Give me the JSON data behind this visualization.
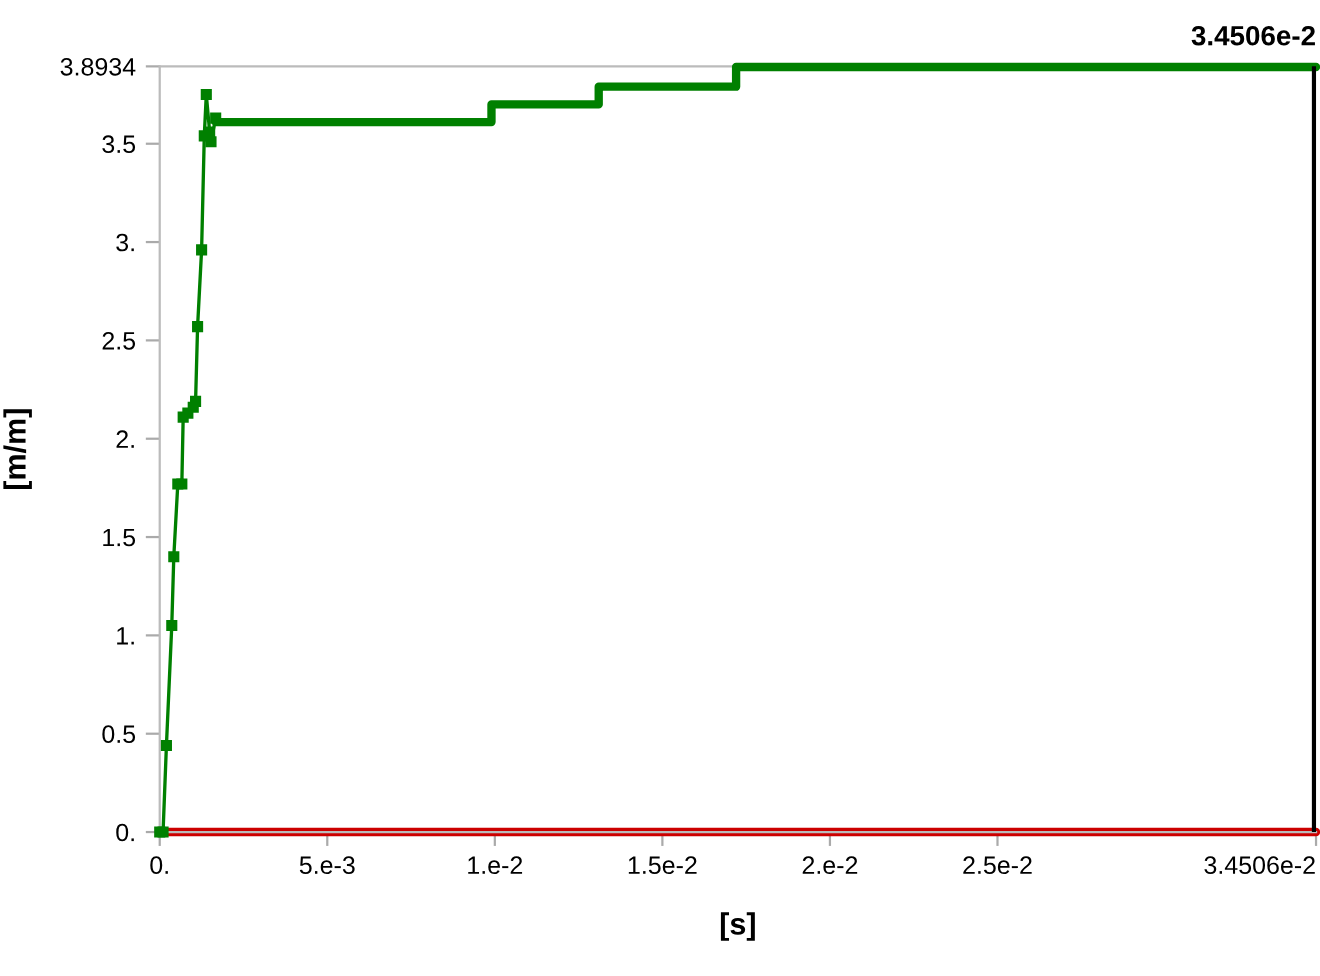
{
  "chart_data": {
    "type": "line",
    "xlabel": "[s]",
    "ylabel": "[m/m]",
    "xlim": [
      0,
      0.034506
    ],
    "ylim": [
      0,
      3.8934
    ],
    "xticks": [
      {
        "value": 0,
        "label": "0."
      },
      {
        "value": 0.005,
        "label": "5.e-3"
      },
      {
        "value": 0.01,
        "label": "1.e-2"
      },
      {
        "value": 0.015,
        "label": "1.5e-2"
      },
      {
        "value": 0.02,
        "label": "2.e-2"
      },
      {
        "value": 0.025,
        "label": "2.5e-2"
      },
      {
        "value": 0.034506,
        "label": "3.4506e-2"
      }
    ],
    "yticks": [
      {
        "value": 0,
        "label": "0."
      },
      0.5,
      {
        "value": 1,
        "label": "1."
      },
      1.5,
      {
        "value": 2,
        "label": "2."
      },
      2.5,
      {
        "value": 3,
        "label": "3."
      },
      3.5,
      3.8934
    ],
    "grid": false,
    "series": [
      {
        "color": "#008000",
        "marker": "square",
        "x": [
          0,
          0.0001,
          0.0002,
          0.00036,
          0.00042,
          0.00054,
          0.00066,
          0.0007,
          0.00084,
          0.001,
          0.00107,
          0.00113,
          0.00125,
          0.00133,
          0.00139,
          0.00149,
          0.00153,
          0.00167
        ],
        "values": [
          0,
          0,
          0.44,
          1.05,
          1.4,
          1.77,
          1.77,
          2.11,
          2.13,
          2.16,
          2.19,
          2.57,
          2.96,
          3.54,
          3.75,
          3.56,
          3.51,
          3.63
        ]
      },
      {
        "color": "#008000",
        "marker": "none",
        "x": [
          0.00167,
          0.0099,
          0.0099,
          0.0131,
          0.0131,
          0.0172,
          0.0172,
          0.034506
        ],
        "values": [
          3.61,
          3.61,
          3.7,
          3.7,
          3.79,
          3.79,
          3.89,
          3.89
        ]
      },
      {
        "color": "#cc0000",
        "marker": "none",
        "x": [
          0,
          0.034506
        ],
        "values": [
          0,
          0
        ]
      }
    ],
    "ref_lines": [
      {
        "axis": "x",
        "value": 0.034506,
        "label": "3.4506e-2",
        "color": "#000000"
      }
    ]
  }
}
